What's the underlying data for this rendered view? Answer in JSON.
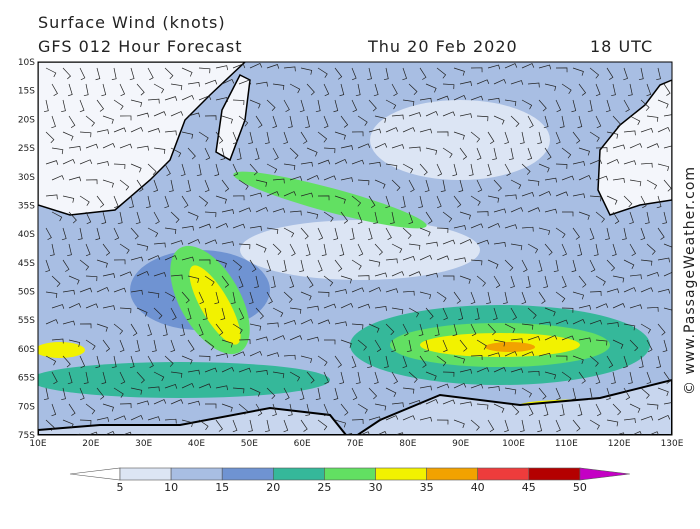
{
  "header": {
    "title": "Surface Wind (knots)",
    "subtitle": "GFS 012 Hour Forecast",
    "date": "Thu 20 Feb 2020",
    "time": "18 UTC"
  },
  "map": {
    "lat_labels": [
      "10S",
      "15S",
      "20S",
      "25S",
      "30S",
      "35S",
      "40S",
      "45S",
      "50S",
      "55S",
      "60S",
      "65S",
      "70S",
      "75S"
    ],
    "lon_labels": [
      "10E",
      "20E",
      "30E",
      "40E",
      "50E",
      "60E",
      "70E",
      "80E",
      "90E",
      "100E",
      "110E",
      "120E",
      "130E"
    ]
  },
  "colorbar": {
    "labels": [
      5,
      10,
      15,
      20,
      25,
      30,
      35,
      40,
      45,
      50
    ],
    "colors": [
      "#ffffff",
      "#dce5f4",
      "#a8bee3",
      "#6f93d2",
      "#35b89a",
      "#62e062",
      "#f2f200",
      "#f2a200",
      "#ee3c3c",
      "#b40000",
      "#c400c4"
    ]
  },
  "watermark": "© www.PassageWeather.com"
}
